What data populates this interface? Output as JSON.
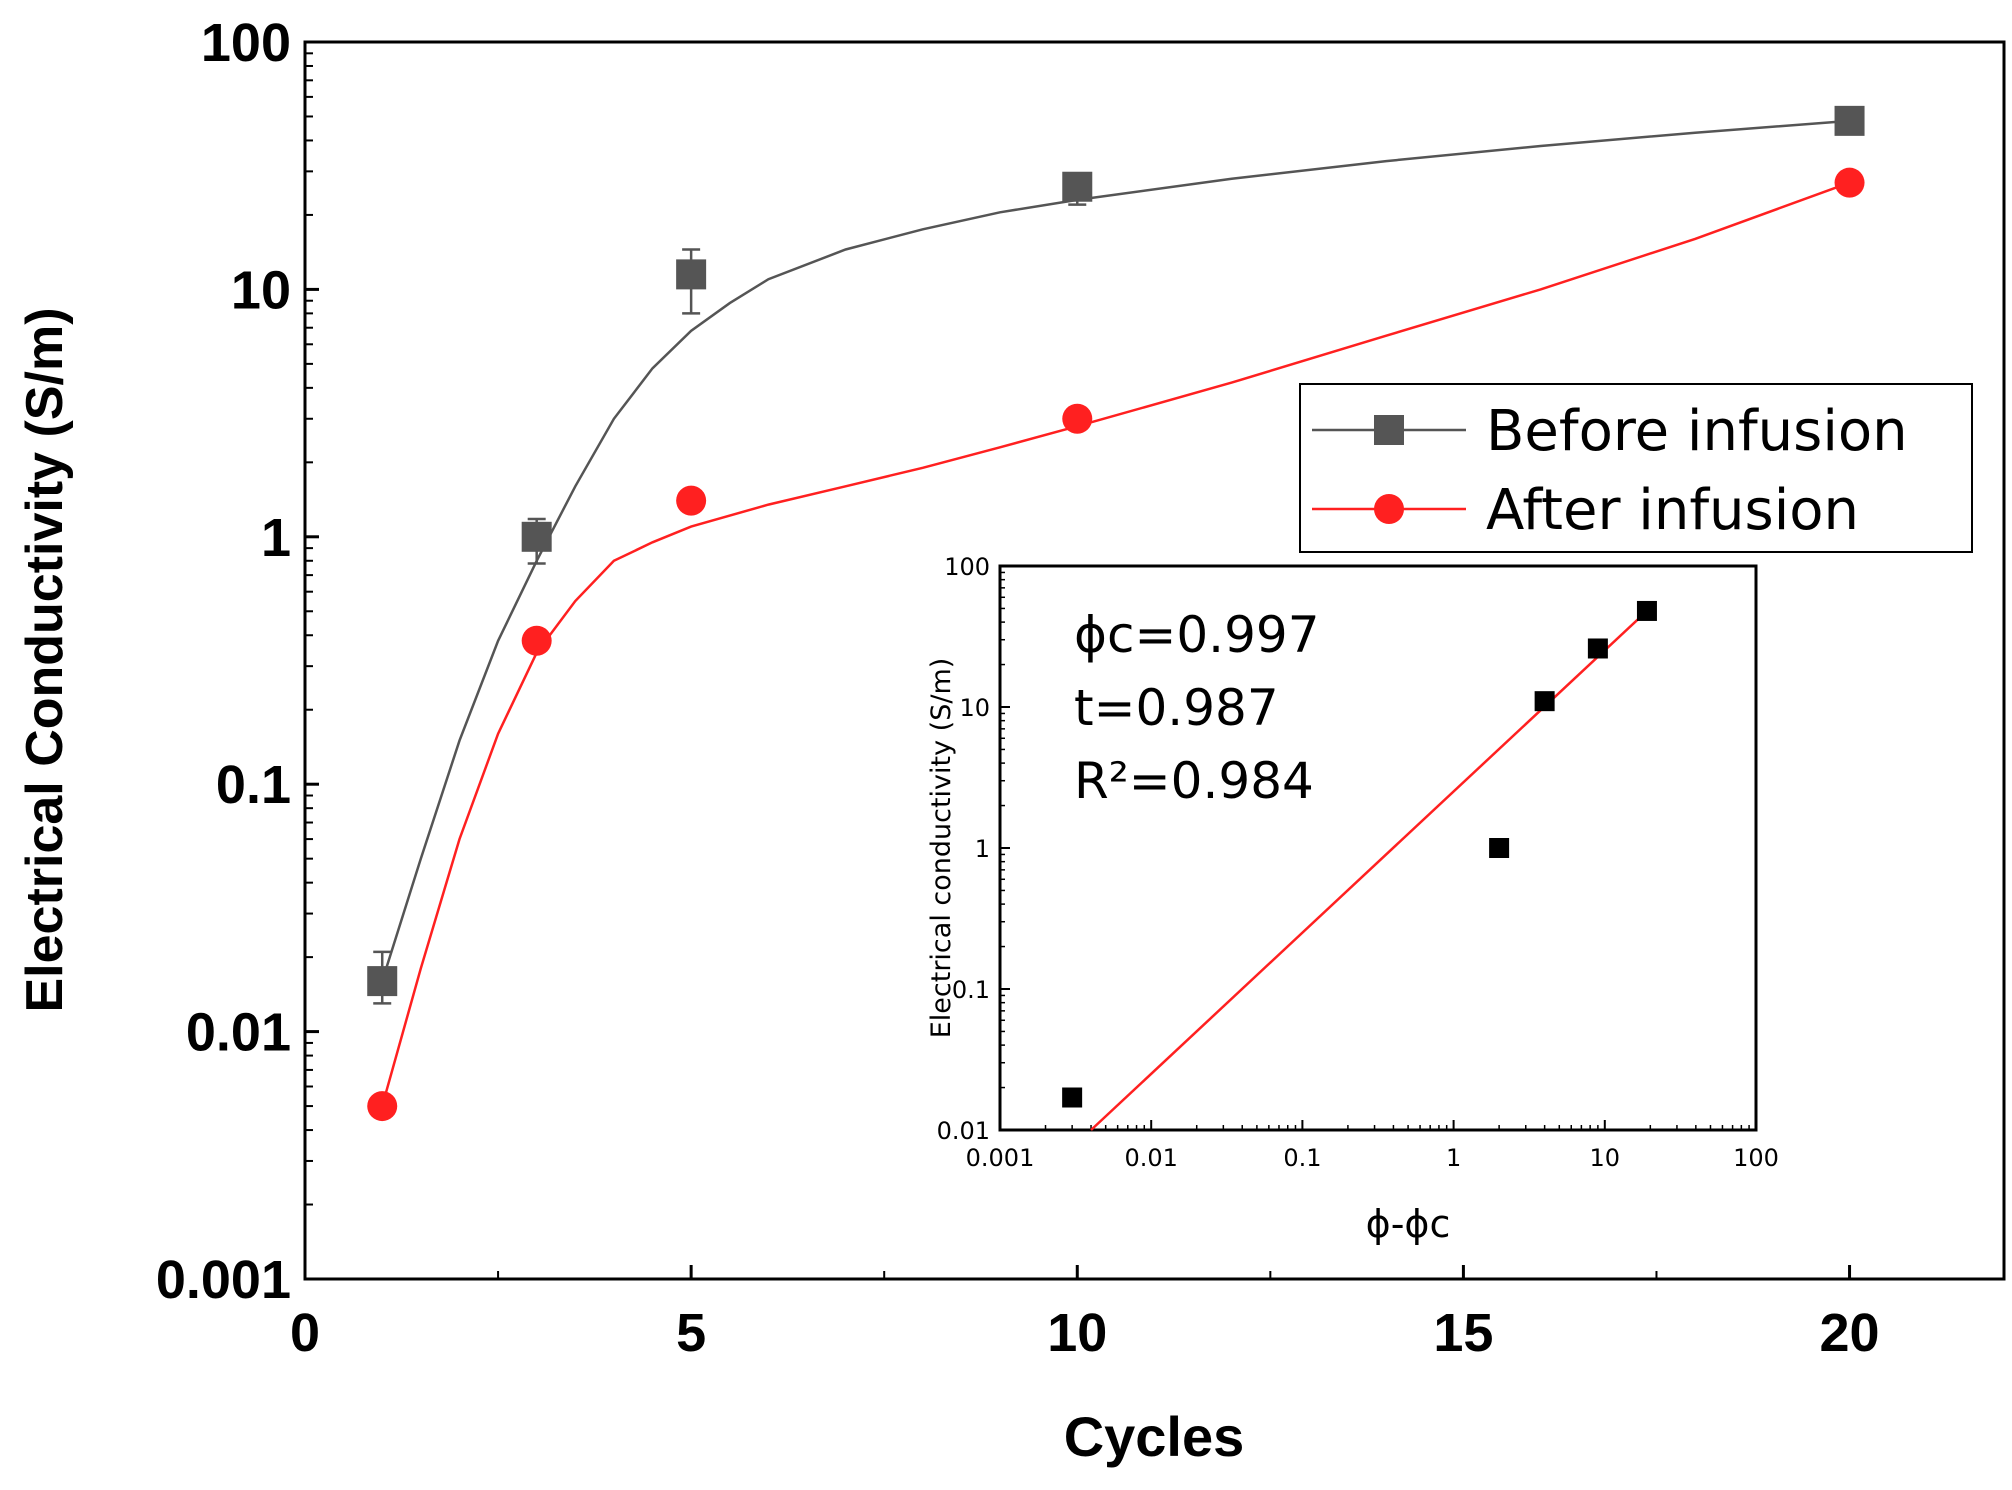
{
  "chart_data": [
    {
      "type": "line",
      "title": "",
      "xlabel": "Cycles",
      "ylabel": "Electrical Conductivity (S/m)",
      "xlim": [
        0,
        22
      ],
      "ylim": [
        0.001,
        100
      ],
      "yscale": "log",
      "x_ticks": [
        0,
        5,
        10,
        15,
        20
      ],
      "x_tick_labels": [
        "0",
        "5",
        "10",
        "15",
        "20"
      ],
      "y_ticks": [
        0.001,
        0.01,
        0.1,
        1,
        10,
        100
      ],
      "y_tick_labels": [
        "0.001",
        "0.01",
        "0.1",
        "1",
        "10",
        "100"
      ],
      "legend_position": "right",
      "series": [
        {
          "name": "Before infusion",
          "color": "#555555",
          "marker": "square",
          "x": [
            1,
            3,
            5,
            10,
            20
          ],
          "y": [
            0.016,
            1.0,
            11.5,
            26,
            48
          ],
          "y_err_low": [
            0.013,
            0.78,
            8.0,
            22,
            45
          ],
          "y_err_high": [
            0.021,
            1.18,
            14.5,
            29,
            51
          ],
          "fit_x": [
            1,
            1.5,
            2,
            2.5,
            3,
            3.5,
            4,
            4.5,
            5,
            5.5,
            6,
            7,
            8,
            9,
            10,
            12,
            14,
            16,
            18,
            20
          ],
          "fit_y": [
            0.016,
            0.05,
            0.15,
            0.38,
            0.8,
            1.6,
            3.0,
            4.8,
            6.8,
            8.8,
            11.0,
            14.5,
            17.5,
            20.5,
            23,
            28,
            33,
            38,
            43,
            48
          ]
        },
        {
          "name": "After infusion",
          "color": "#ff2020",
          "marker": "circle",
          "x": [
            1,
            3,
            5,
            10,
            20
          ],
          "y": [
            0.005,
            0.38,
            1.4,
            3.0,
            27
          ],
          "fit_x": [
            1,
            1.5,
            2,
            2.5,
            3,
            3.5,
            4,
            4.5,
            5,
            6,
            7,
            8,
            9,
            10,
            12,
            14,
            16,
            18,
            20
          ],
          "fit_y": [
            0.005,
            0.018,
            0.06,
            0.16,
            0.34,
            0.55,
            0.8,
            0.95,
            1.1,
            1.35,
            1.6,
            1.9,
            2.3,
            2.8,
            4.2,
            6.5,
            10,
            16,
            27
          ]
        }
      ]
    },
    {
      "type": "scatter",
      "title": "",
      "xlabel": "ϕ-ϕc",
      "ylabel": "Electrical conductivity (S/m)",
      "xscale": "log",
      "yscale": "log",
      "xlim": [
        0.001,
        100
      ],
      "ylim": [
        0.01,
        100
      ],
      "x_ticks": [
        0.001,
        0.01,
        0.1,
        1,
        10,
        100
      ],
      "x_tick_labels": [
        "0.001",
        "0.01",
        "0.1",
        "1",
        "10",
        "100"
      ],
      "y_ticks": [
        0.01,
        0.1,
        1,
        10,
        100
      ],
      "y_tick_labels": [
        "0.01",
        "0.1",
        "1",
        "10",
        "100"
      ],
      "annotations": [
        "ϕc=0.997",
        "t=0.987",
        "R²=0.984"
      ],
      "points": {
        "color": "#000000",
        "x": [
          0.003,
          2.0,
          4.0,
          9.0,
          19.0
        ],
        "y": [
          0.017,
          1.0,
          11.0,
          26,
          48
        ]
      },
      "fit_line": {
        "color": "#ff2020",
        "x": [
          0.004,
          19.0
        ],
        "y": [
          0.01,
          48
        ]
      }
    }
  ]
}
